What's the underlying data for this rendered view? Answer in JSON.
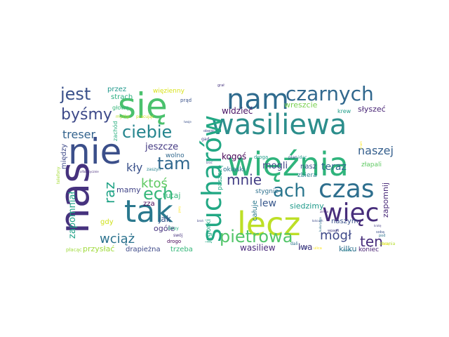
{
  "word_cloud": {
    "words": [
      {
        "text": "nie",
        "color": "#3b4f8a"
      },
      {
        "text": "nas",
        "color": "#46327e"
      },
      {
        "text": "się",
        "color": "#4ac16d"
      },
      {
        "text": "nam",
        "color": "#2f6b8e"
      },
      {
        "text": "wasiliewa",
        "color": "#2c8e8c"
      },
      {
        "text": "więźnia",
        "color": "#2fb47c"
      },
      {
        "text": "sucharów",
        "color": "#22a884"
      },
      {
        "text": "lecz",
        "color": "#bddf26"
      },
      {
        "text": "tak",
        "color": "#2a788e"
      },
      {
        "text": "czas",
        "color": "#2e6f8e"
      },
      {
        "text": "więc",
        "color": "#472d7b"
      },
      {
        "text": "czarnych",
        "color": "#31688e"
      },
      {
        "text": "jest",
        "color": "#3b528b"
      },
      {
        "text": "byśmy",
        "color": "#3e4a89"
      },
      {
        "text": "ciebie",
        "color": "#25858e"
      },
      {
        "text": "tam",
        "color": "#31688e"
      },
      {
        "text": "ech",
        "color": "#35b779"
      },
      {
        "text": "ach",
        "color": "#2a768e"
      },
      {
        "text": "pietrowa",
        "color": "#52c569"
      },
      {
        "text": "mnie",
        "color": "#433e85"
      },
      {
        "text": "ktoś",
        "color": "#5ec962"
      },
      {
        "text": "mógł",
        "color": "#3e4989"
      },
      {
        "text": "ten",
        "color": "#472d7b"
      },
      {
        "text": "wciąż",
        "color": "#2c728e"
      },
      {
        "text": "raz",
        "color": "#20a386"
      },
      {
        "text": "treser",
        "color": "#33638d"
      },
      {
        "text": "kły",
        "color": "#3b528b"
      },
      {
        "text": "mogli",
        "color": "#414487"
      },
      {
        "text": "naszej",
        "color": "#355f8d"
      },
      {
        "text": "teraz",
        "color": "#31688e"
      },
      {
        "text": "przez",
        "color": "#1f988b"
      },
      {
        "text": "strach",
        "color": "#28ae80"
      },
      {
        "text": "więzienny",
        "color": "#d8e219"
      },
      {
        "text": "prąd",
        "color": "#3b528b"
      },
      {
        "text": "wreszcie",
        "color": "#7ad151"
      },
      {
        "text": "krew",
        "color": "#1f9e89"
      },
      {
        "text": "słyszeć",
        "color": "#482475"
      },
      {
        "text": "widzieć",
        "color": "#471164"
      },
      {
        "text": "zachód",
        "color": "#29af7f"
      },
      {
        "text": "jeszcze",
        "color": "#443a83"
      },
      {
        "text": "kogoś",
        "color": "#440154"
      },
      {
        "text": "nasz",
        "color": "#3b528b"
      },
      {
        "text": "zbiera",
        "color": "#26828e"
      },
      {
        "text": "złapali",
        "color": "#5ec962"
      },
      {
        "text": "oklaski",
        "color": "#2c728e"
      },
      {
        "text": "między",
        "color": "#3e4a89"
      },
      {
        "text": "zapomniał",
        "color": "#1fa187"
      },
      {
        "text": "telefony",
        "color": "#a5db36"
      },
      {
        "text": "mamy",
        "color": "#414487"
      },
      {
        "text": "tutaj",
        "color": "#35b779"
      },
      {
        "text": "zza",
        "color": "#440154"
      },
      {
        "text": "lew",
        "color": "#38588c"
      },
      {
        "text": "siedzimy",
        "color": "#1f9a8a"
      },
      {
        "text": "stygnie",
        "color": "#2d708e"
      },
      {
        "text": "jak",
        "color": "#38588c"
      },
      {
        "text": "ogóle",
        "color": "#46337e"
      },
      {
        "text": "gdy",
        "color": "#d0e11c"
      },
      {
        "text": "przysłać",
        "color": "#9fda3a"
      },
      {
        "text": "drapieżna",
        "color": "#3e4a89"
      },
      {
        "text": "trzeba",
        "color": "#35b779"
      },
      {
        "text": "wasiliew",
        "color": "#482878"
      },
      {
        "text": "lwa",
        "color": "#453781"
      },
      {
        "text": "kilku",
        "color": "#2d708e"
      },
      {
        "text": "koniec",
        "color": "#482173"
      },
      {
        "text": "naszym",
        "color": "#3b528b"
      },
      {
        "text": "zapomnij",
        "color": "#482878"
      },
      {
        "text": "jegorki",
        "color": "#22a884"
      },
      {
        "text": "całuje",
        "color": "#2a788e"
      },
      {
        "text": "paszczę",
        "color": "#22a884"
      },
      {
        "text": "wolno",
        "color": "#31688e"
      },
      {
        "text": "głowę",
        "color": "#35b779"
      },
      {
        "text": "myśląc",
        "color": "#b5de2b"
      },
      {
        "text": "płacąc",
        "color": "#9fda3a"
      },
      {
        "text": "pracując",
        "color": "#c8e020"
      },
      {
        "text": "zaszyli",
        "color": "#26828e"
      },
      {
        "text": "drogo",
        "color": "#440154"
      },
      {
        "text": "swój",
        "color": "#46337e"
      },
      {
        "text": "ślepy",
        "color": "#28ae80"
      },
      {
        "text": "drogą",
        "color": "#1f9e89"
      },
      {
        "text": "idąc",
        "color": "#1f988b"
      },
      {
        "text": "dali",
        "color": "#2c728e"
      },
      {
        "text": "nim",
        "color": "#3e4a89"
      },
      {
        "text": "plan",
        "color": "#3b528b"
      },
      {
        "text": "zbrania",
        "color": "#b5de2b"
      },
      {
        "text": "gad",
        "color": "#414487"
      },
      {
        "text": "obejść",
        "color": "#3e4a89"
      },
      {
        "text": "ulica",
        "color": "#fde725"
      },
      {
        "text": "wpadli",
        "color": "#433e85"
      },
      {
        "text": "pod",
        "color": "#2c728e"
      },
      {
        "text": "sobą",
        "color": "#3b528b"
      },
      {
        "text": "grał",
        "color": "#46337e"
      },
      {
        "text": "alfabetycznie",
        "color": "#472d7b"
      },
      {
        "text": "dalej",
        "color": "#fde725"
      },
      {
        "text": "twoje",
        "color": "#3b528b"
      },
      {
        "text": "znam",
        "color": "#fde725"
      },
      {
        "text": "daleko",
        "color": "#26828e"
      },
      {
        "text": "pasy",
        "color": "#fde725"
      },
      {
        "text": "kratę",
        "color": "#433e85"
      },
      {
        "text": "łańcuch",
        "color": "#3e4a89"
      },
      {
        "text": "zimno",
        "color": "#482878"
      },
      {
        "text": "broń",
        "color": "#414487"
      },
      {
        "text": "brać",
        "color": "#3b528b"
      },
      {
        "text": "kukurydza",
        "color": "#2c728e"
      }
    ]
  }
}
